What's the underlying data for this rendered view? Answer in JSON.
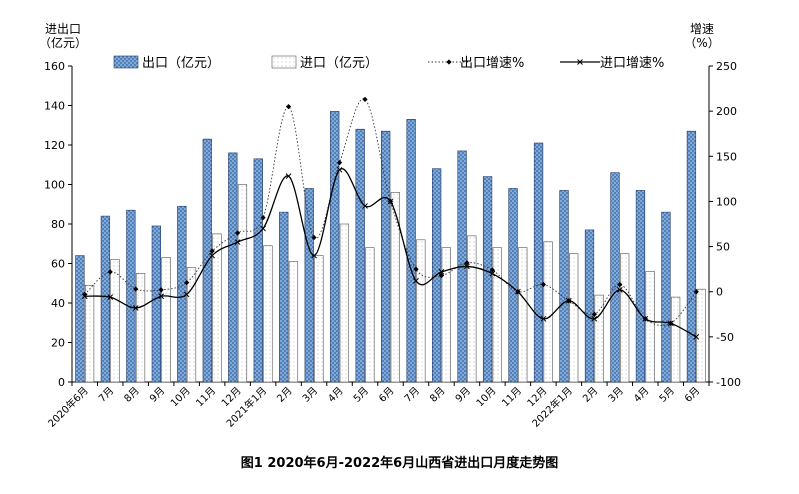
{
  "chart_data": {
    "type": "bar",
    "caption": "图1   2020年6月-2022年6月山西省进出口月度走势图",
    "y_left_label_line1": "进出口",
    "y_left_label_line2": "（亿元）",
    "y_right_label_line1": "增速",
    "y_right_label_line2": "（%）",
    "ylim_left": [
      0,
      160
    ],
    "ylim_right": [
      -100,
      250
    ],
    "yticks_left": [
      0,
      20,
      40,
      60,
      80,
      100,
      120,
      140,
      160
    ],
    "yticks_right": [
      -100,
      -50,
      0,
      50,
      100,
      150,
      200,
      250
    ],
    "legend_position": "top",
    "grid": false,
    "categories": [
      "2020年6月",
      "7月",
      "8月",
      "9月",
      "10月",
      "11月",
      "12月",
      "2021年1月",
      "2月",
      "3月",
      "4月",
      "5月",
      "6月",
      "7月",
      "8月",
      "9月",
      "10月",
      "11月",
      "12月",
      "2022年1月",
      "2月",
      "3月",
      "4月",
      "5月",
      "6月"
    ],
    "series": [
      {
        "name": "出口（亿元）",
        "type": "bar",
        "axis": "left",
        "color": "#4f81bd",
        "values": [
          64,
          84,
          87,
          79,
          89,
          123,
          116,
          113,
          86,
          98,
          137,
          128,
          127,
          133,
          108,
          117,
          104,
          98,
          121,
          97,
          77,
          106,
          97,
          86,
          127
        ]
      },
      {
        "name": "进口（亿元）",
        "type": "bar",
        "axis": "left",
        "color": "#ffffff",
        "values": [
          49,
          62,
          55,
          63,
          58,
          75,
          100,
          69,
          61,
          64,
          80,
          68,
          96,
          72,
          68,
          74,
          68,
          68,
          71,
          65,
          44,
          65,
          56,
          43,
          47
        ]
      },
      {
        "name": "出口增速%",
        "type": "line",
        "axis": "right",
        "style": "dotted-diamond",
        "values": [
          -3,
          22,
          3,
          2,
          10,
          45,
          65,
          82,
          205,
          60,
          143,
          213,
          100,
          25,
          18,
          32,
          24,
          0,
          8,
          -10,
          -25,
          8,
          -30,
          -35,
          0
        ]
      },
      {
        "name": "进口增速%",
        "type": "line",
        "axis": "right",
        "style": "solid-x",
        "values": [
          -5,
          -6,
          -18,
          -5,
          -3,
          40,
          55,
          70,
          128,
          40,
          135,
          95,
          100,
          12,
          22,
          28,
          20,
          0,
          -30,
          -10,
          -30,
          2,
          -30,
          -35,
          -50
        ]
      }
    ]
  }
}
